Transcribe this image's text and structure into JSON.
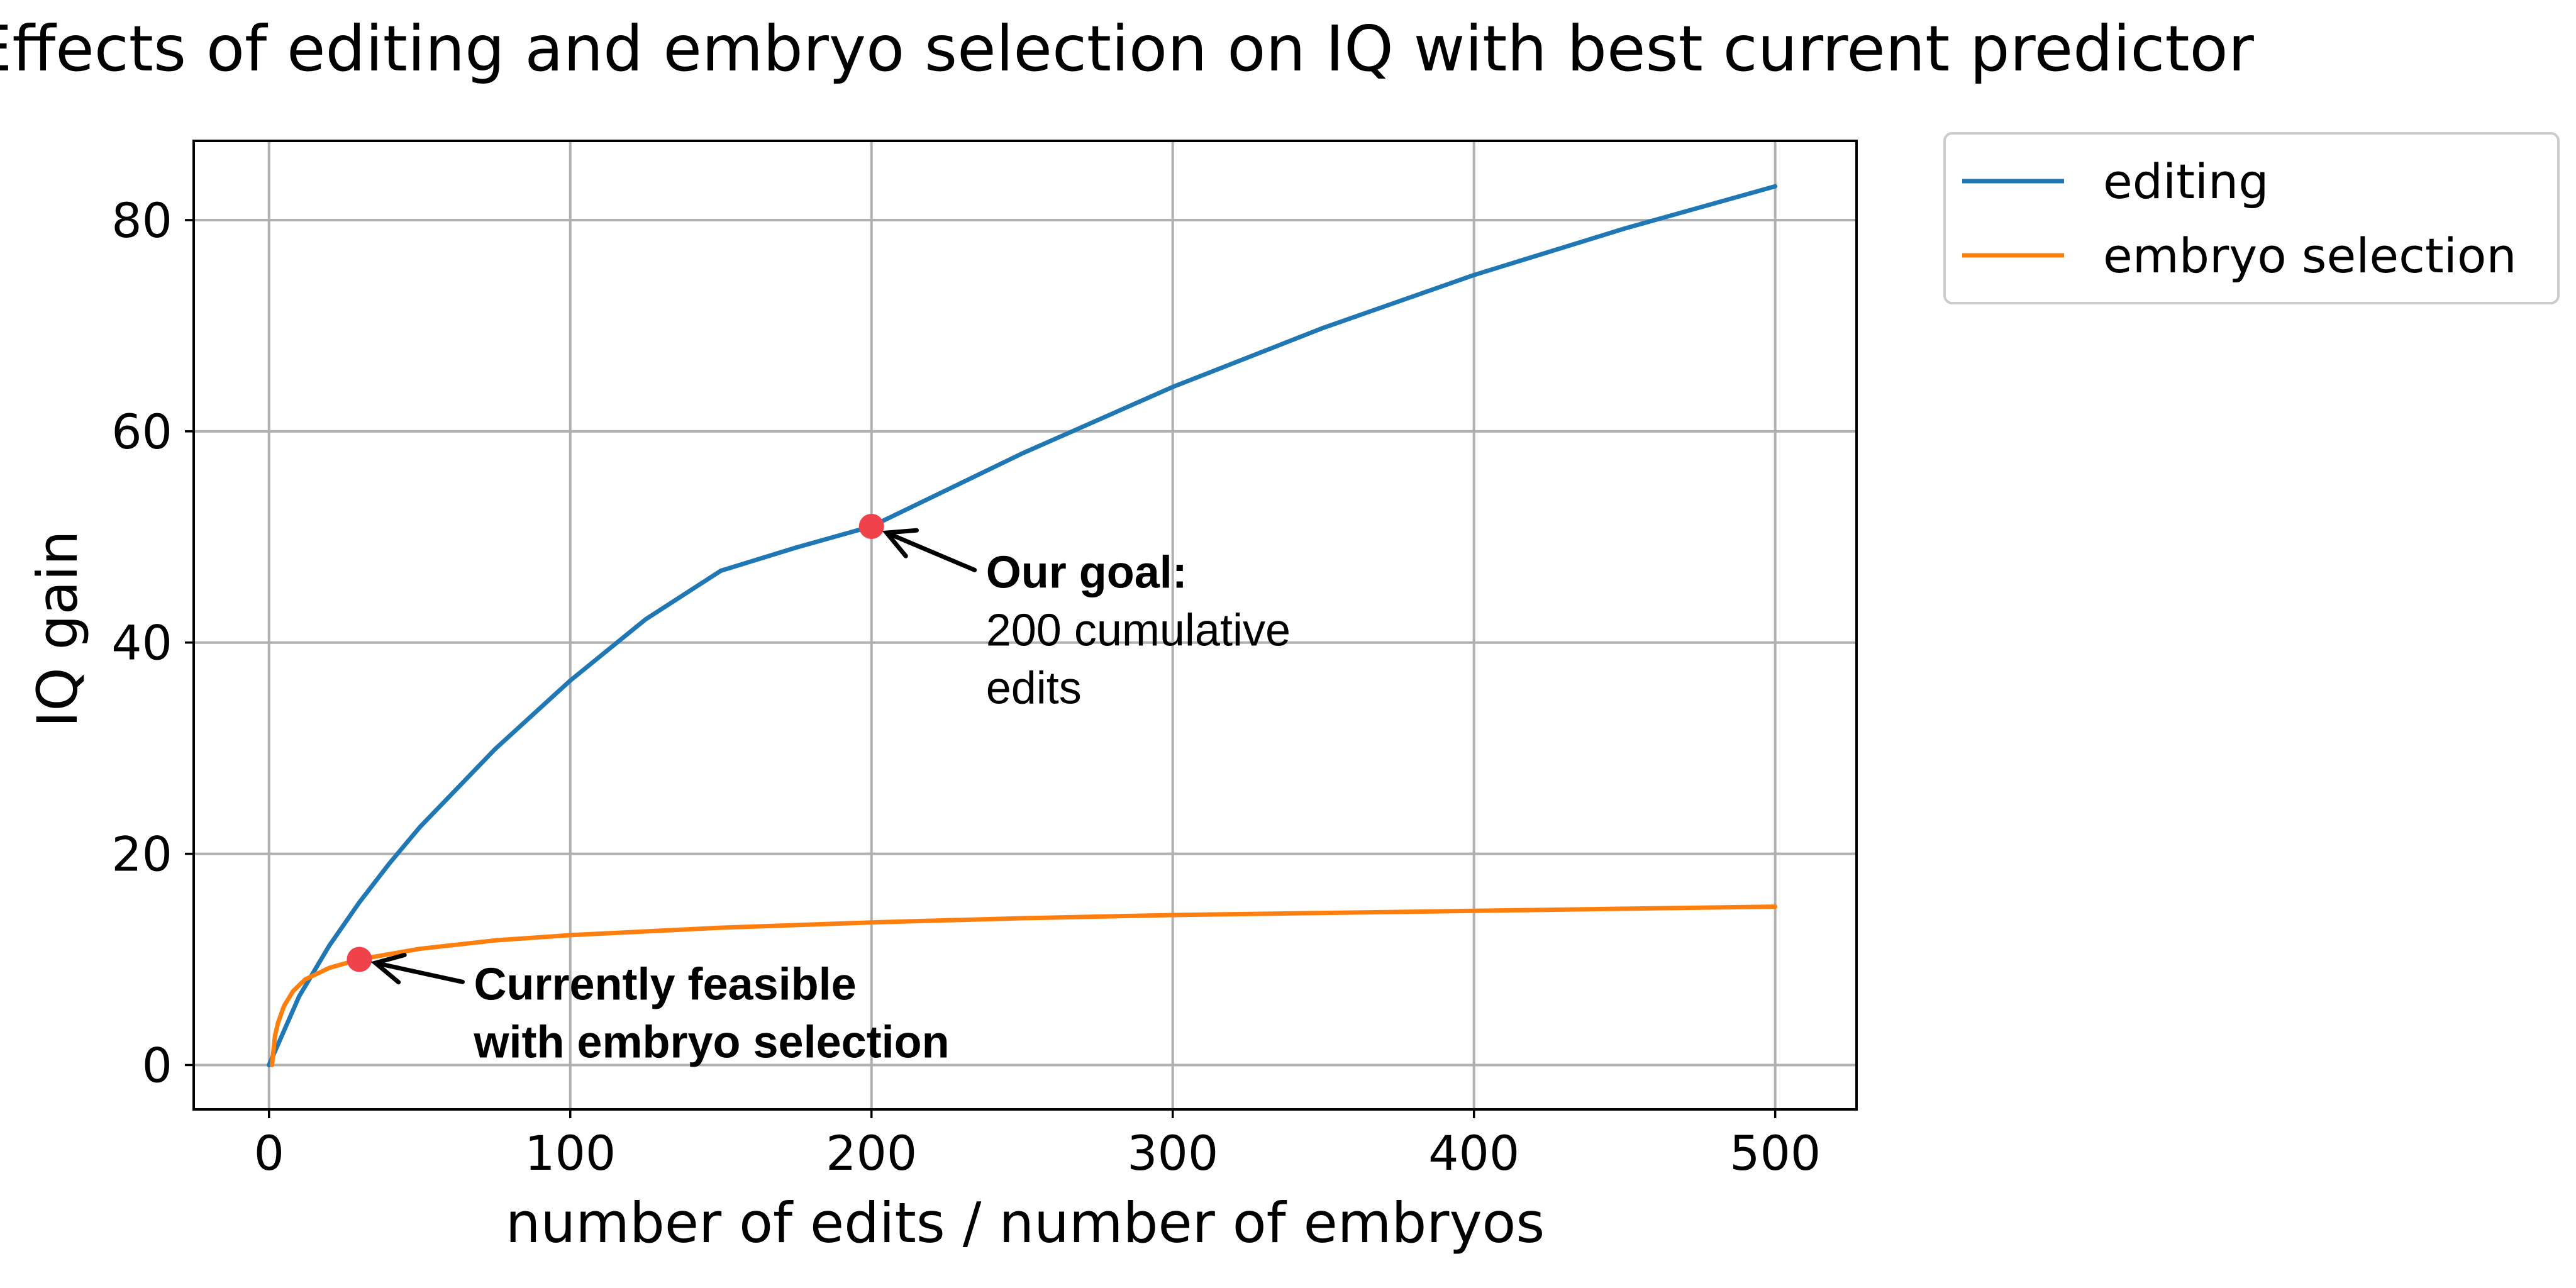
{
  "chart_data": {
    "type": "line",
    "title": "Effects of editing and embryo selection on IQ with best current predictor",
    "xlabel": "number of edits / number of embryos",
    "ylabel": "IQ gain",
    "xlim": [
      -25,
      527
    ],
    "ylim": [
      -4.2,
      87.5
    ],
    "x_ticks": [
      0,
      100,
      200,
      300,
      400,
      500
    ],
    "y_ticks": [
      0,
      20,
      40,
      60,
      80
    ],
    "grid": true,
    "legend_position": "outside-top-right",
    "series": [
      {
        "name": "editing",
        "color": "#1f77b4",
        "x": [
          0,
          10,
          20,
          30,
          40,
          50,
          75,
          100,
          125,
          150,
          175,
          200,
          250,
          300,
          350,
          400,
          450,
          500
        ],
        "y": [
          0,
          6.5,
          11.3,
          15.4,
          19.1,
          22.5,
          29.9,
          36.4,
          42.2,
          46.8,
          49.0,
          51.0,
          57.9,
          64.2,
          69.8,
          74.8,
          79.2,
          83.2
        ]
      },
      {
        "name": "embryo selection",
        "color": "#ff7f0e",
        "x": [
          1,
          2,
          3,
          5,
          8,
          12,
          20,
          30,
          50,
          75,
          100,
          150,
          200,
          250,
          300,
          350,
          400,
          450,
          500
        ],
        "y": [
          0,
          2.8,
          4.0,
          5.6,
          7.0,
          8.1,
          9.2,
          10.0,
          11.0,
          11.8,
          12.3,
          13.0,
          13.5,
          13.9,
          14.2,
          14.4,
          14.6,
          14.8,
          15.0
        ]
      }
    ],
    "highlight_points": [
      {
        "x": 30,
        "y": 10,
        "color": "#f0424a"
      },
      {
        "x": 200,
        "y": 51,
        "color": "#f0424a"
      }
    ],
    "annotations": [
      {
        "target_x": 30,
        "target_y": 10,
        "text_x": 68,
        "text_y": 6.2,
        "bold_lines": [
          "Currently feasible",
          "with embryo selection"
        ],
        "normal_lines": []
      },
      {
        "target_x": 200,
        "target_y": 51,
        "text_x": 238,
        "text_y": 45.2,
        "bold_lines": [
          "Our goal:"
        ],
        "normal_lines": [
          "200 cumulative",
          "edits"
        ]
      }
    ]
  }
}
